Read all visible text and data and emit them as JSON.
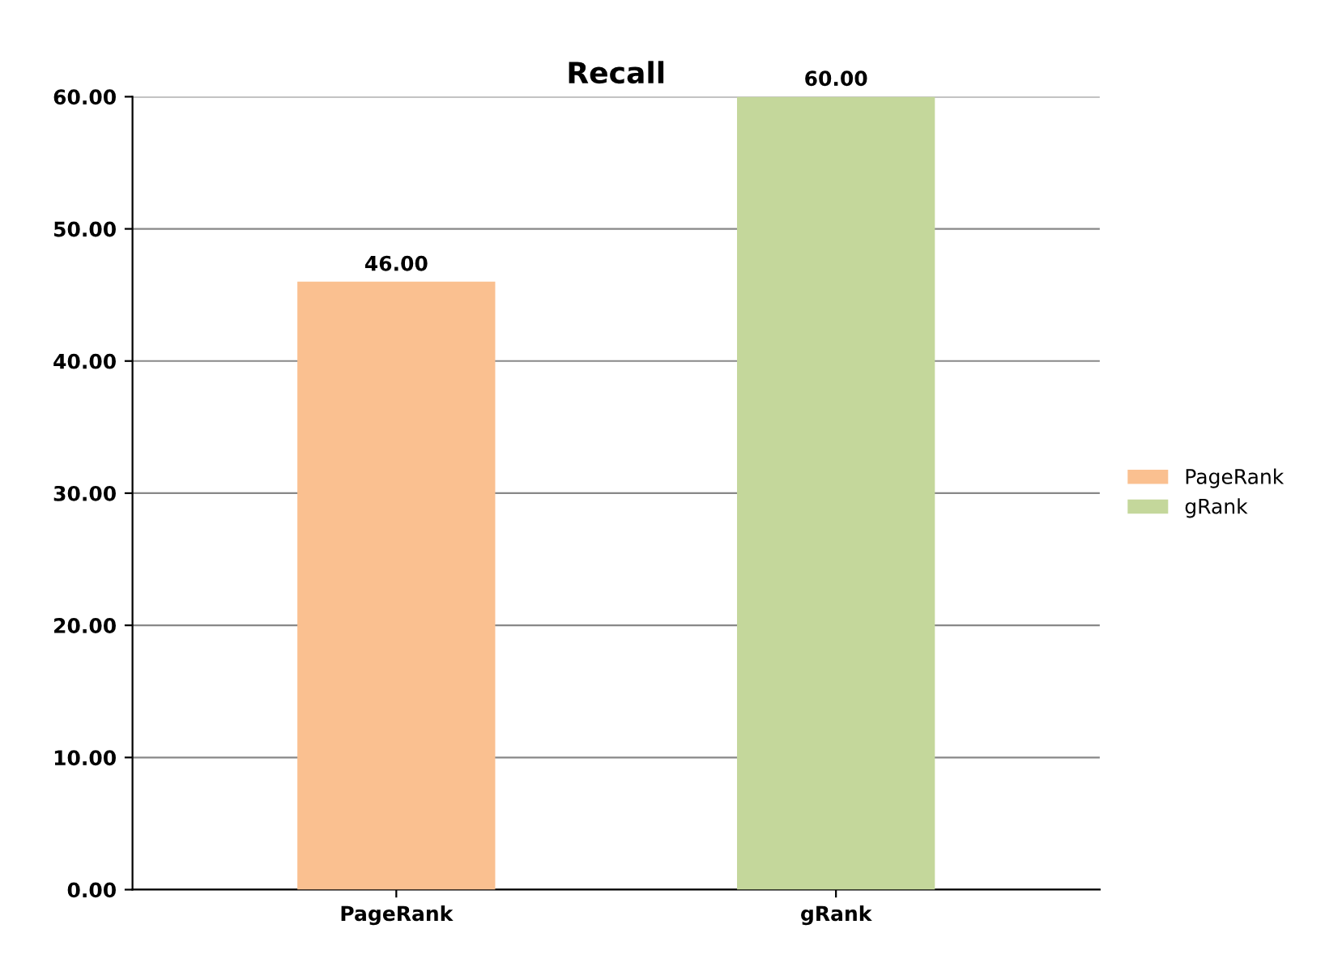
{
  "chart_data": {
    "type": "bar",
    "title": "Recall",
    "categories": [
      "PageRank",
      "gRank"
    ],
    "series": [
      {
        "name": "PageRank",
        "color": "#fac090",
        "values": [
          46.0,
          null
        ]
      },
      {
        "name": "gRank",
        "color": "#c4d79b",
        "values": [
          null,
          60.0
        ]
      }
    ],
    "ylim": [
      0,
      60
    ],
    "yticks": [
      {
        "value": 0,
        "label": "0.00"
      },
      {
        "value": 10,
        "label": "10.00"
      },
      {
        "value": 20,
        "label": "20.00"
      },
      {
        "value": 30,
        "label": "30.00"
      },
      {
        "value": 40,
        "label": "40.00"
      },
      {
        "value": 50,
        "label": "50.00"
      },
      {
        "value": 60,
        "label": "60.00"
      }
    ],
    "value_labels": [
      "46.00",
      "60.00"
    ],
    "grid": "y",
    "legend": "right"
  }
}
